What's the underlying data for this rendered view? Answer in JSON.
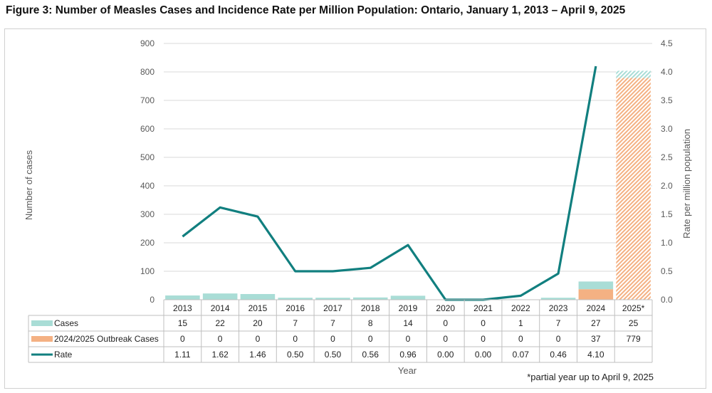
{
  "title": "Figure 3: Number of Measles Cases and Incidence Rate per Million Population: Ontario, January 1, 2013 – April 9, 2025",
  "footnote": "*partial year up to April 9, 2025",
  "colors": {
    "cases": "#a9ddd6",
    "outbreak": "#f4b183",
    "rate": "#117f7f",
    "gridline": "#d9d9d9",
    "hatch_bg": "#ffffff"
  },
  "chart_data": {
    "type": "bar+line",
    "categories": [
      "2013",
      "2014",
      "2015",
      "2016",
      "2017",
      "2018",
      "2019",
      "2020",
      "2021",
      "2022",
      "2023",
      "2024",
      "2025*"
    ],
    "xlabel": "Year",
    "ylabel_left": "Number of cases",
    "ylabel_right": "Rate per million population",
    "ylim_left": [
      0,
      900
    ],
    "ylim_right": [
      0,
      4.5
    ],
    "left_ticks": [
      "0",
      "100",
      "200",
      "300",
      "400",
      "500",
      "600",
      "700",
      "800",
      "900"
    ],
    "right_ticks": [
      "0.0",
      "0.5",
      "1.0",
      "1.5",
      "2.0",
      "2.5",
      "3.0",
      "3.5",
      "4.0",
      "4.5"
    ],
    "series": [
      {
        "name": "Cases",
        "kind": "stacked-bar",
        "axis": "left",
        "values": [
          15,
          22,
          20,
          7,
          7,
          8,
          14,
          0,
          0,
          1,
          7,
          27,
          25
        ],
        "labels": [
          "15",
          "22",
          "20",
          "7",
          "7",
          "8",
          "14",
          "0",
          "0",
          "1",
          "7",
          "27",
          "25"
        ]
      },
      {
        "name": "2024/2025 Outbreak Cases",
        "kind": "stacked-bar",
        "axis": "left",
        "values": [
          0,
          0,
          0,
          0,
          0,
          0,
          0,
          0,
          0,
          0,
          0,
          37,
          779
        ],
        "labels": [
          "0",
          "0",
          "0",
          "0",
          "0",
          "0",
          "0",
          "0",
          "0",
          "0",
          "0",
          "37",
          "779"
        ]
      },
      {
        "name": "Rate",
        "kind": "line",
        "axis": "right",
        "values": [
          1.11,
          1.62,
          1.46,
          0.5,
          0.5,
          0.56,
          0.96,
          0.0,
          0.0,
          0.07,
          0.46,
          4.1,
          null
        ],
        "labels": [
          "1.11",
          "1.62",
          "1.46",
          "0.50",
          "0.50",
          "0.56",
          "0.96",
          "0.00",
          "0.00",
          "0.07",
          "0.46",
          "4.10",
          ""
        ]
      }
    ],
    "partial_year_hatched": "2025*"
  }
}
